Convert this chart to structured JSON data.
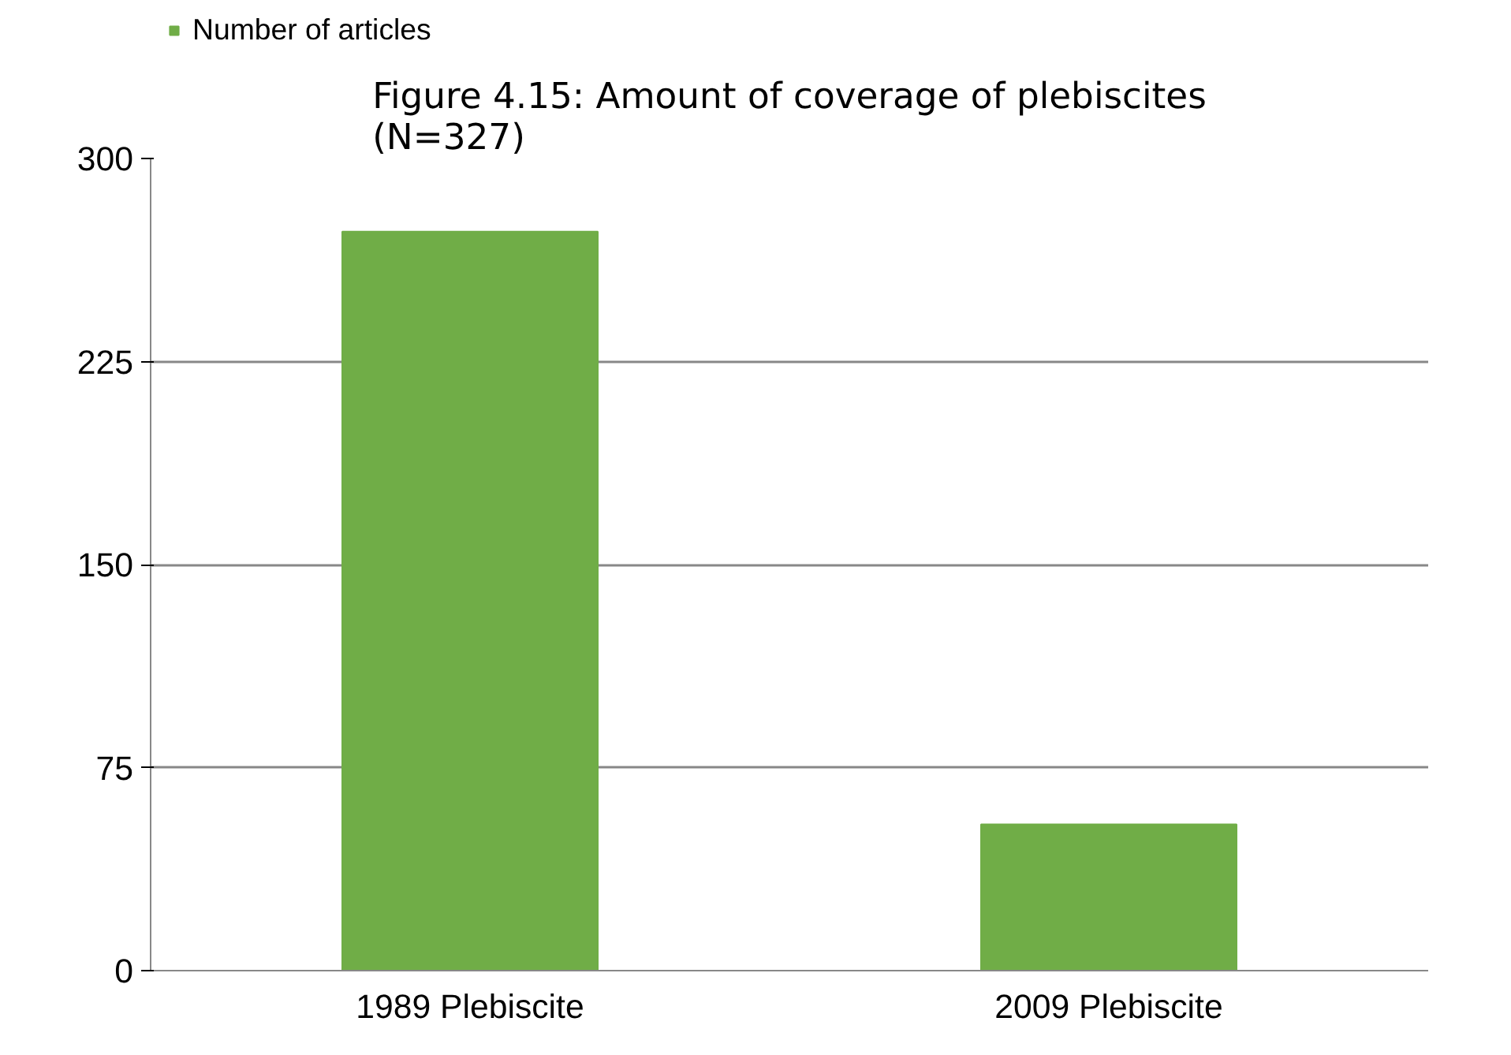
{
  "chart_data": {
    "type": "bar",
    "title": "Figure 4.15: Amount of coverage of plebiscites\n(N=327)",
    "categories": [
      "1989 Plebiscite",
      "2009 Plebiscite"
    ],
    "series": [
      {
        "name": "Number of articles",
        "color": "#70ad47",
        "values": [
          273,
          54
        ]
      }
    ],
    "ylim": [
      0,
      300
    ],
    "yticks": [
      0,
      75,
      150,
      225,
      300
    ],
    "grid": "y",
    "legend": "top left"
  }
}
